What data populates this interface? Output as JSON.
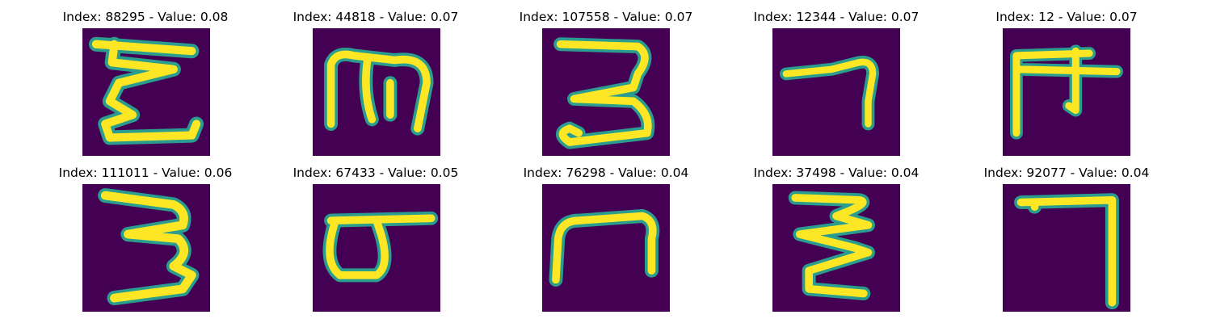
{
  "colors": {
    "background": "#440154",
    "stroke": "#fde725",
    "edge": "#2a9d8f"
  },
  "tiles": [
    {
      "title": "Index: 88295 - Value: 0.08"
    },
    {
      "title": "Index: 44818 - Value: 0.07"
    },
    {
      "title": "Index: 107558 - Value: 0.07"
    },
    {
      "title": "Index: 12344 - Value: 0.07"
    },
    {
      "title": "Index: 12 - Value: 0.07"
    },
    {
      "title": "Index: 111011 - Value: 0.06"
    },
    {
      "title": "Index: 67433 - Value: 0.05"
    },
    {
      "title": "Index: 76298 - Value: 0.04"
    },
    {
      "title": "Index: 37498 - Value: 0.04"
    },
    {
      "title": "Index: 92077 - Value: 0.04"
    }
  ]
}
